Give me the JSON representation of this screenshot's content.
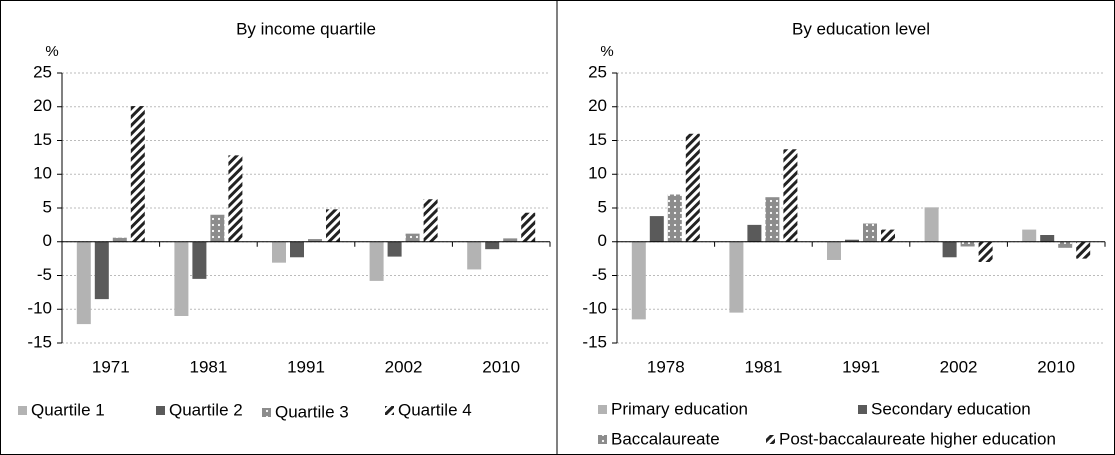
{
  "chart_data": [
    {
      "type": "bar",
      "title": "By income quartile",
      "y_label": "%",
      "categories": [
        "1971",
        "1981",
        "1991",
        "2002",
        "2010"
      ],
      "series": [
        {
          "name": "Quartile 1",
          "color": "#b3b3b3",
          "pattern": "solid",
          "values": [
            -12.2,
            -11.0,
            -3.1,
            -5.8,
            -4.1
          ]
        },
        {
          "name": "Quartile 2",
          "color": "#5a5a5a",
          "pattern": "solid",
          "values": [
            -8.5,
            -5.5,
            -2.3,
            -2.2,
            -1.1
          ]
        },
        {
          "name": "Quartile 3",
          "color": "#8c8c8c",
          "pattern": "dots",
          "values": [
            0.6,
            4.0,
            0.4,
            1.2,
            0.5
          ]
        },
        {
          "name": "Quartile 4",
          "color": "#222222",
          "pattern": "stripes",
          "values": [
            20.1,
            12.8,
            4.8,
            6.3,
            4.3
          ]
        }
      ],
      "ylim": [
        -15,
        25
      ],
      "yticks": [
        -15,
        -10,
        -5,
        0,
        5,
        10,
        15,
        20,
        25
      ],
      "grid": true
    },
    {
      "type": "bar",
      "title": "By education level",
      "y_label": "%",
      "categories": [
        "1978",
        "1981",
        "1991",
        "2002",
        "2010"
      ],
      "series": [
        {
          "name": "Primary education",
          "color": "#b3b3b3",
          "pattern": "solid",
          "values": [
            -11.5,
            -10.5,
            -2.7,
            5.1,
            1.8
          ]
        },
        {
          "name": "Secondary education",
          "color": "#5a5a5a",
          "pattern": "solid",
          "values": [
            3.8,
            2.5,
            0.3,
            -2.3,
            1.0
          ]
        },
        {
          "name": "Baccalaureate",
          "color": "#8c8c8c",
          "pattern": "dots",
          "values": [
            7.0,
            6.6,
            2.7,
            -0.7,
            -0.9
          ]
        },
        {
          "name": "Post-baccalaureate higher education",
          "color": "#222222",
          "pattern": "stripes",
          "values": [
            16.0,
            13.7,
            1.8,
            -3.0,
            -2.5
          ]
        }
      ],
      "ylim": [
        -15,
        25
      ],
      "yticks": [
        -15,
        -10,
        -5,
        0,
        5,
        10,
        15,
        20,
        25
      ],
      "grid": true
    }
  ]
}
